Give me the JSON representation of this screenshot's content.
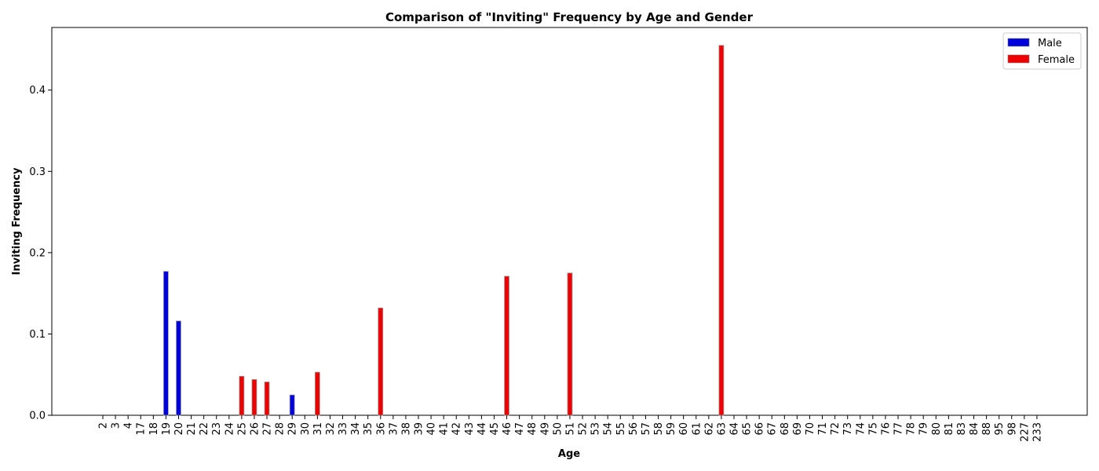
{
  "chart_data": {
    "type": "bar",
    "title": "Comparison of \"Inviting\" Frequency by Age and Gender",
    "xlabel": "Age",
    "ylabel": "Inviting Frequency",
    "ylim": [
      0,
      0.477
    ],
    "yticks": [
      "0.0",
      "0.1",
      "0.2",
      "0.3",
      "0.4"
    ],
    "ytick_values": [
      0,
      0.1,
      0.2,
      0.3,
      0.4
    ],
    "grid": false,
    "legend_position": "top-right",
    "categories": [
      "2",
      "3",
      "4",
      "17",
      "18",
      "19",
      "20",
      "21",
      "22",
      "23",
      "24",
      "25",
      "26",
      "27",
      "28",
      "29",
      "30",
      "31",
      "32",
      "33",
      "34",
      "35",
      "36",
      "37",
      "38",
      "39",
      "40",
      "41",
      "42",
      "43",
      "44",
      "45",
      "46",
      "47",
      "48",
      "49",
      "50",
      "51",
      "52",
      "53",
      "54",
      "55",
      "56",
      "57",
      "58",
      "59",
      "60",
      "61",
      "62",
      "63",
      "64",
      "65",
      "66",
      "67",
      "68",
      "69",
      "70",
      "71",
      "72",
      "73",
      "74",
      "75",
      "76",
      "77",
      "78",
      "79",
      "80",
      "81",
      "83",
      "84",
      "88",
      "95",
      "98",
      "227",
      "233"
    ],
    "series": [
      {
        "name": "Male",
        "color": "#0000dd",
        "values": {
          "19": 0.177,
          "20": 0.116,
          "29": 0.025
        }
      },
      {
        "name": "Female",
        "color": "#ee0000",
        "values": {
          "25": 0.048,
          "26": 0.044,
          "27": 0.041,
          "31": 0.053,
          "36": 0.132,
          "46": 0.171,
          "51": 0.175,
          "63": 0.455
        }
      }
    ]
  }
}
